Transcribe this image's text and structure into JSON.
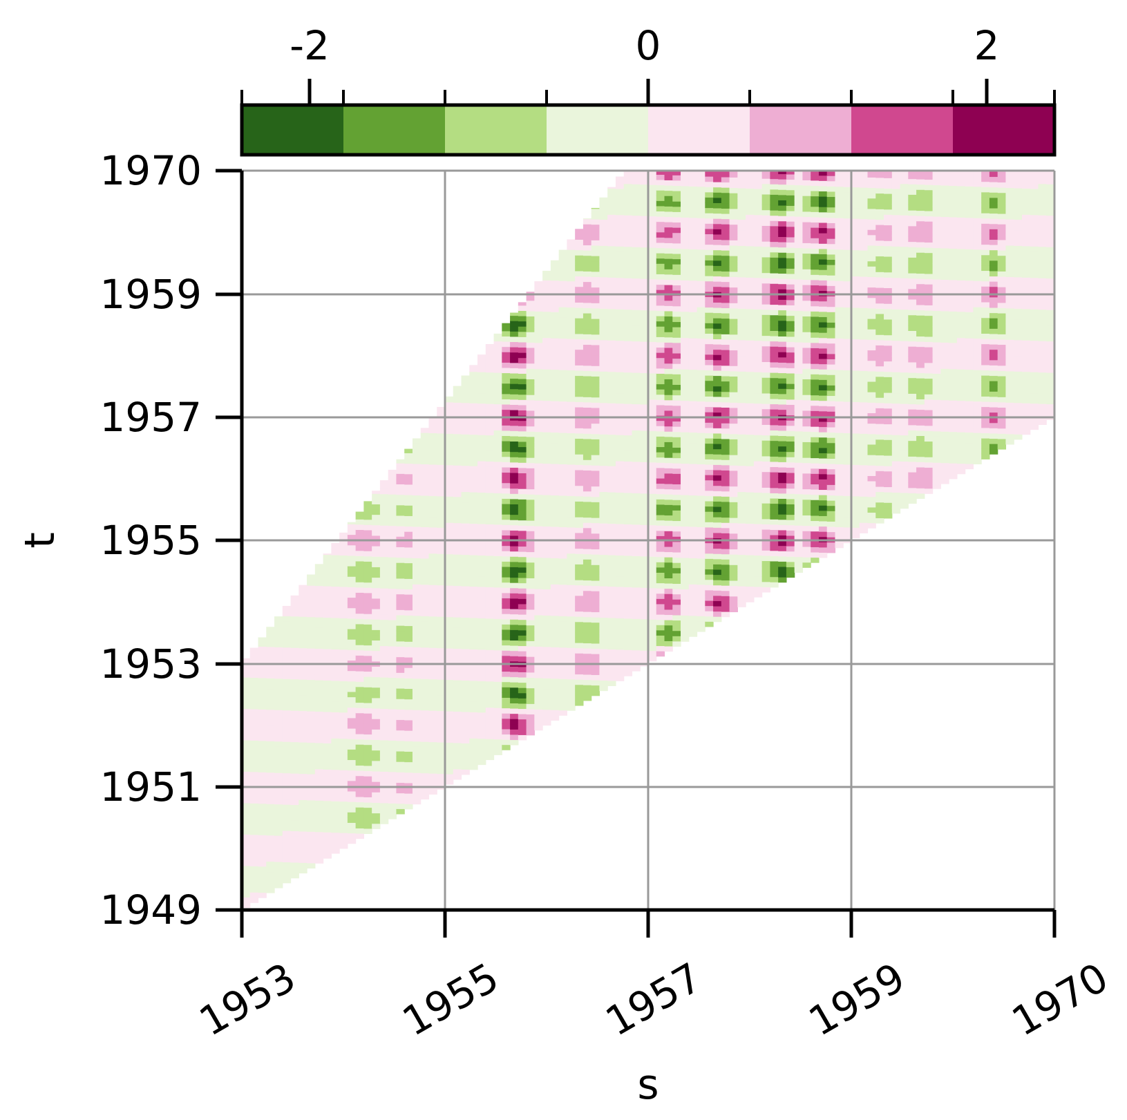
{
  "chart_data": {
    "type": "heatmap",
    "title": "",
    "xlabel": "s",
    "ylabel": "t",
    "x_tick_labels": [
      "1953",
      "1955",
      "1957",
      "1959",
      "1970"
    ],
    "y_tick_labels": [
      "1949",
      "1951",
      "1953",
      "1955",
      "1957",
      "1959",
      "1970"
    ],
    "grid": true,
    "colorbar": {
      "placement": "top",
      "range": [
        -2.4,
        2.4
      ],
      "tick_values": [
        -2,
        0,
        2
      ],
      "tick_labels": [
        "-2",
        "0",
        "2"
      ],
      "levels": [
        -2.4,
        -1.8,
        -1.2,
        -0.6,
        0,
        0.6,
        1.2,
        1.8,
        2.4
      ],
      "colors": [
        "#276419",
        "#63a233",
        "#b4dd82",
        "#eaf5dc",
        "#fbe6f0",
        "#eeaed3",
        "#d0488f",
        "#8e0152"
      ]
    },
    "band": {
      "description_free": true,
      "lower_t_at_s_start": 1949,
      "upper_t_at_s_start": 1953,
      "lower_t_at_s_end": 1957,
      "upper_t_at_s_end": 1970
    },
    "columns": [
      {
        "s": 1953.6,
        "amp": 0.4
      },
      {
        "s": 1954.2,
        "amp": 1.2
      },
      {
        "s": 1954.6,
        "amp": 0.8
      },
      {
        "s": 1955.2,
        "amp": 0.5
      },
      {
        "s": 1955.7,
        "amp": 2.1
      },
      {
        "s": 1956.4,
        "amp": 1.2
      },
      {
        "s": 1957.2,
        "amp": 1.6
      },
      {
        "s": 1957.7,
        "amp": 1.9
      },
      {
        "s": 1958.3,
        "amp": 2.0
      },
      {
        "s": 1958.7,
        "amp": 1.9
      },
      {
        "s": 1959.3,
        "amp": 1.0
      },
      {
        "s": 1959.7,
        "amp": 1.2
      },
      {
        "s": 1960.4,
        "amp": 1.4
      }
    ]
  }
}
